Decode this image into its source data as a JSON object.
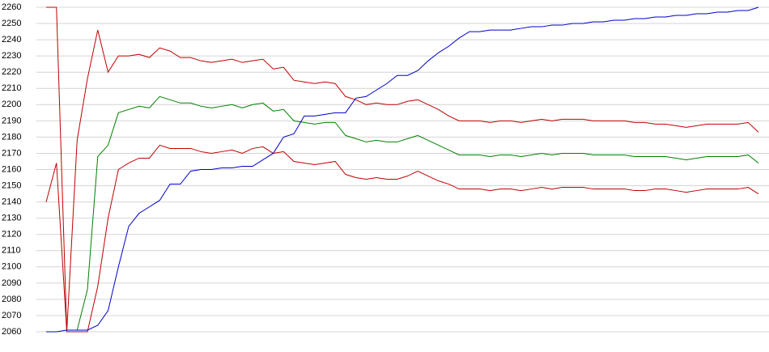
{
  "chart_data": {
    "type": "line",
    "categories": [
      null,
      null,
      null,
      null,
      null,
      null,
      null,
      null,
      null,
      null,
      null,
      null,
      null,
      null,
      null,
      null,
      null,
      null,
      null,
      null,
      null,
      null,
      null,
      null,
      null,
      null,
      null,
      null,
      null,
      null,
      null,
      null,
      null,
      null,
      null,
      null,
      null,
      null,
      null,
      null,
      null,
      null,
      null,
      null,
      null,
      null,
      null,
      null,
      null,
      null,
      null,
      null,
      null,
      null,
      null,
      null,
      null,
      null,
      null,
      null,
      null,
      null,
      null,
      null,
      null,
      null,
      null,
      null,
      null,
      null
    ],
    "series": [
      {
        "color": "#c00000",
        "values": [
          2260,
          2260,
          2060,
          2178,
          2216,
          2246,
          2220,
          2230,
          2230,
          2231,
          2229,
          2235,
          2233,
          2229,
          2229,
          2227,
          2226,
          2227,
          2228,
          2226,
          2227,
          2228,
          2222,
          2223,
          2215,
          2214,
          2213,
          2214,
          2213,
          2205,
          2203,
          2200,
          2201,
          2200,
          2200,
          2202,
          2203,
          2200,
          2197,
          2193,
          2190,
          2190,
          2190,
          2189,
          2190,
          2190,
          2189,
          2190,
          2191,
          2190,
          2191,
          2191,
          2191,
          2190,
          2190,
          2190,
          2190,
          2189,
          2189,
          2188,
          2188,
          2187,
          2186,
          2187,
          2188,
          2188,
          2188,
          2188,
          2189,
          2183
        ]
      },
      {
        "color": "#008000",
        "values": [
          null,
          null,
          2061,
          2061,
          2086,
          2168,
          2175,
          2195,
          2197,
          2199,
          2198,
          2205,
          2203,
          2201,
          2201,
          2199,
          2198,
          2199,
          2200,
          2198,
          2200,
          2201,
          2196,
          2197,
          2190,
          2189,
          2188,
          2189,
          2189,
          2181,
          2179,
          2177,
          2178,
          2177,
          2177,
          2179,
          2181,
          2178,
          2175,
          2172,
          2169,
          2169,
          2169,
          2168,
          2169,
          2169,
          2168,
          2169,
          2170,
          2169,
          2170,
          2170,
          2170,
          2169,
          2169,
          2169,
          2169,
          2168,
          2168,
          2168,
          2168,
          2167,
          2166,
          2167,
          2168,
          2168,
          2168,
          2168,
          2169,
          2164
        ]
      },
      {
        "color": "#c00000",
        "values": [
          2140,
          2164,
          2060,
          2060,
          2060,
          2088,
          2130,
          2160,
          2164,
          2167,
          2167,
          2175,
          2173,
          2173,
          2173,
          2171,
          2170,
          2171,
          2172,
          2170,
          2173,
          2174,
          2170,
          2171,
          2165,
          2164,
          2163,
          2164,
          2165,
          2157,
          2155,
          2154,
          2155,
          2154,
          2154,
          2156,
          2159,
          2156,
          2153,
          2151,
          2148,
          2148,
          2148,
          2147,
          2148,
          2148,
          2147,
          2148,
          2149,
          2148,
          2149,
          2149,
          2149,
          2148,
          2148,
          2148,
          2148,
          2147,
          2147,
          2148,
          2148,
          2147,
          2146,
          2147,
          2148,
          2148,
          2148,
          2148,
          2149,
          2145
        ]
      },
      {
        "color": "#0000cc",
        "values": [
          2060,
          2060,
          2061,
          2061,
          2061,
          2064,
          2073,
          2100,
          2125,
          2133,
          2137,
          2141,
          2151,
          2151,
          2159,
          2160,
          2160,
          2161,
          2161,
          2162,
          2162,
          2166,
          2170,
          2180,
          2182,
          2193,
          2193,
          2194,
          2195,
          2195,
          2204,
          2205,
          2209,
          2213,
          2218,
          2218,
          2221,
          2227,
          2232,
          2236,
          2241,
          2245,
          2245,
          2246,
          2246,
          2246,
          2247,
          2248,
          2248,
          2249,
          2249,
          2250,
          2250,
          2251,
          2251,
          2252,
          2252,
          2253,
          2253,
          2254,
          2254,
          2255,
          2255,
          2256,
          2256,
          2257,
          2257,
          2258,
          2258,
          2260
        ]
      }
    ],
    "ylim": [
      2060,
      2260
    ],
    "yticks": [
      2060,
      2070,
      2080,
      2090,
      2100,
      2110,
      2120,
      2130,
      2140,
      2150,
      2160,
      2170,
      2180,
      2190,
      2200,
      2210,
      2220,
      2230,
      2240,
      2250,
      2260
    ],
    "grid": true
  }
}
